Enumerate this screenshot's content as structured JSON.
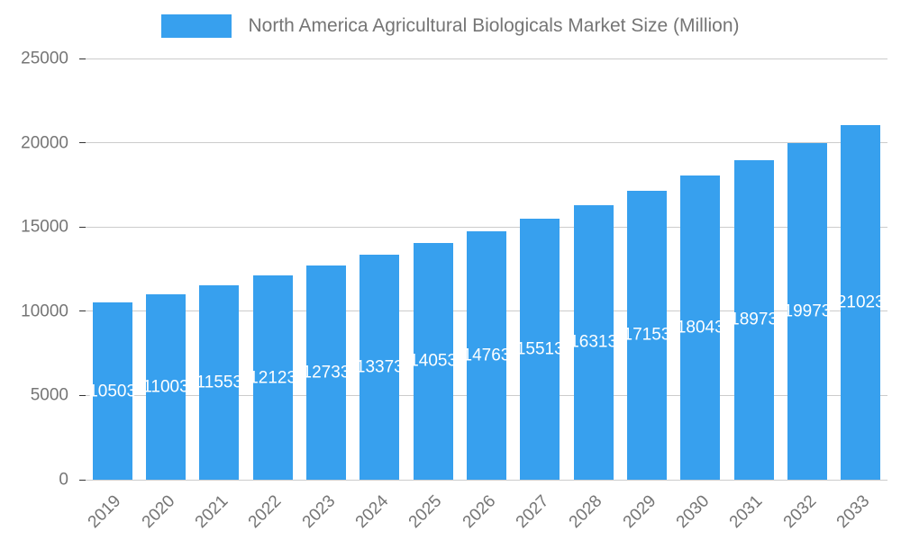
{
  "chart_data": {
    "type": "bar",
    "title": "North America Agricultural Biologicals Market Size (Million)",
    "categories": [
      "2019",
      "2020",
      "2021",
      "2022",
      "2023",
      "2024",
      "2025",
      "2026",
      "2027",
      "2028",
      "2029",
      "2030",
      "2031",
      "2032",
      "2033"
    ],
    "values": [
      10503,
      11003,
      11553,
      12123,
      12733,
      13373,
      14053,
      14763,
      15513,
      16313,
      17153,
      18043,
      18973,
      19973,
      21023
    ],
    "xlabel": "",
    "ylabel": "",
    "ylim": [
      0,
      25000
    ],
    "yticks": [
      0,
      5000,
      10000,
      15000,
      20000,
      25000
    ],
    "grid": true,
    "legend_position": "top",
    "bar_color": "#37A0EE",
    "value_label_color": "#FFFFFF",
    "axis_text_color": "#757575",
    "grid_color": "#CCCCCC",
    "tick_color": "#333333"
  }
}
